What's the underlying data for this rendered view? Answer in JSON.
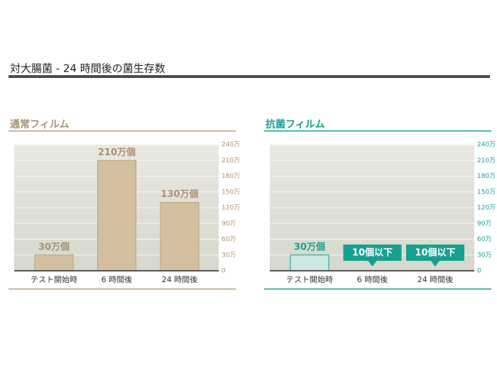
{
  "title": "対大腸菌 - 24 時間後の菌生存数",
  "chart_data": [
    {
      "type": "bar",
      "title": "通常フィルム",
      "title_color": "#a89273",
      "categories": [
        "テスト開始時",
        "6 時間後",
        "24 時間後"
      ],
      "values": [
        300000,
        2100000,
        1300000
      ],
      "value_labels": [
        "30万個",
        "210万個",
        "130万個"
      ],
      "color": "#d3bf9f",
      "edge_color": "#b8a07e",
      "ylim": [
        0,
        2400000
      ],
      "yticks": [
        0,
        {
          "value": 300000,
          "label": "30万"
        },
        {
          "value": 600000,
          "label": "60万"
        },
        {
          "value": 900000,
          "label": "90万"
        },
        {
          "value": 1200000,
          "label": "120万"
        },
        {
          "value": 1500000,
          "label": "150万"
        },
        {
          "value": 1800000,
          "label": "180万"
        },
        {
          "value": 2100000,
          "label": "210万"
        },
        {
          "value": 2400000,
          "label": "240万"
        }
      ],
      "grid": true
    },
    {
      "type": "bar",
      "title": "抗菌フィルム",
      "title_color": "#16a08f",
      "categories": [
        "テスト開始時",
        "6 時間後",
        "24 時間後"
      ],
      "values": [
        300000,
        10,
        10
      ],
      "value_labels": [
        "30万個",
        "10個以下",
        "10個以下"
      ],
      "color": "#cde8e2",
      "edge_color": "#16a08f",
      "ylim": [
        0,
        2400000
      ],
      "yticks": [
        0,
        {
          "value": 300000,
          "label": "30万"
        },
        {
          "value": 600000,
          "label": "60万"
        },
        {
          "value": 900000,
          "label": "90万"
        },
        {
          "value": 1200000,
          "label": "120万"
        },
        {
          "value": 1500000,
          "label": "150万"
        },
        {
          "value": 1800000,
          "label": "180万"
        },
        {
          "value": 2100000,
          "label": "210万"
        },
        {
          "value": 2400000,
          "label": "240万"
        }
      ],
      "grid": true
    }
  ]
}
